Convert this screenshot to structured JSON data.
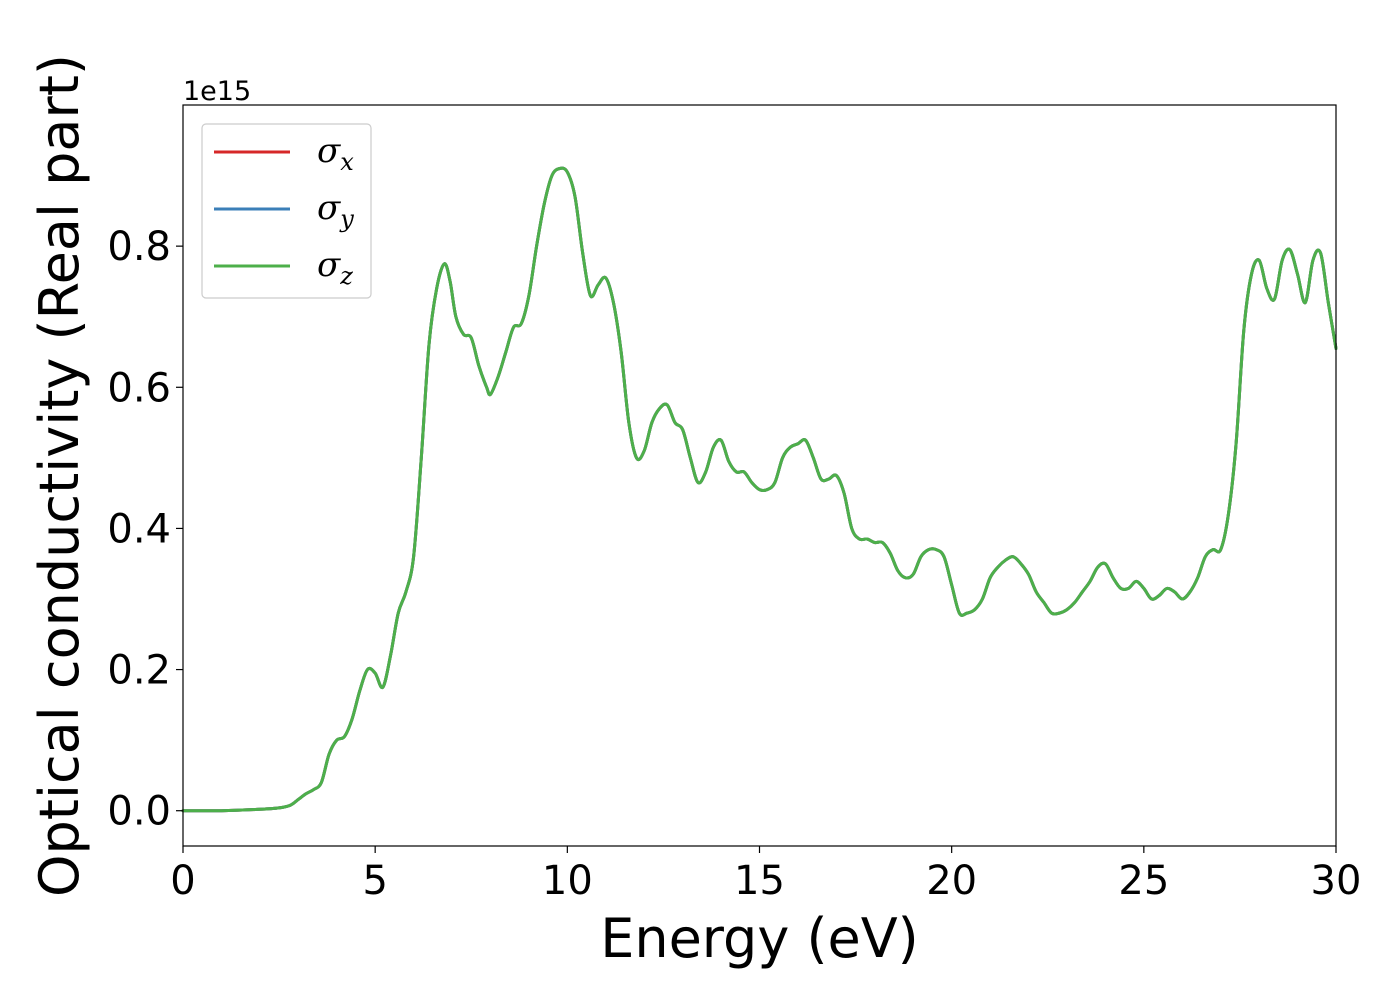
{
  "chart_data": {
    "type": "line",
    "xlabel": "Energy (eV)",
    "ylabel": "Optical conductivity (Real part)",
    "y_offset_text": "1e15",
    "xlim": [
      0,
      30
    ],
    "ylim": [
      -0.05,
      1.0
    ],
    "x_ticks": [
      0,
      5,
      10,
      15,
      20,
      25,
      30
    ],
    "x_tick_labels": [
      "0",
      "5",
      "10",
      "15",
      "20",
      "25",
      "30"
    ],
    "y_ticks": [
      0.0,
      0.2,
      0.4,
      0.6,
      0.8
    ],
    "y_tick_labels": [
      "0.0",
      "0.2",
      "0.4",
      "0.6",
      "0.8"
    ],
    "grid": false,
    "legend_position": "upper-left",
    "legend": [
      {
        "symbol": "σ",
        "subscript": "x",
        "color": "#d62728"
      },
      {
        "symbol": "σ",
        "subscript": "y",
        "color": "#3b7fb8"
      },
      {
        "symbol": "σ",
        "subscript": "z",
        "color": "#4daf4a"
      }
    ],
    "series": [
      {
        "name": "σx",
        "color": "#d62728",
        "ref": "shared"
      },
      {
        "name": "σy",
        "color": "#3b7fb8",
        "ref": "shared"
      },
      {
        "name": "σz",
        "color": "#4daf4a",
        "ref": "shared"
      }
    ],
    "shared": {
      "x": [
        0,
        1,
        2,
        2.5,
        2.8,
        3.0,
        3.2,
        3.4,
        3.6,
        3.8,
        4.0,
        4.2,
        4.4,
        4.6,
        4.8,
        5.0,
        5.2,
        5.4,
        5.6,
        5.8,
        6.0,
        6.2,
        6.4,
        6.6,
        6.8,
        6.95,
        7.1,
        7.3,
        7.5,
        7.7,
        7.9,
        8.0,
        8.2,
        8.4,
        8.6,
        8.8,
        9.0,
        9.2,
        9.4,
        9.6,
        9.8,
        10.0,
        10.2,
        10.4,
        10.6,
        10.8,
        11.0,
        11.2,
        11.4,
        11.6,
        11.8,
        12.0,
        12.2,
        12.4,
        12.6,
        12.8,
        13.0,
        13.2,
        13.4,
        13.6,
        13.8,
        14.0,
        14.2,
        14.4,
        14.6,
        14.8,
        15.0,
        15.2,
        15.4,
        15.6,
        15.8,
        16.0,
        16.2,
        16.4,
        16.6,
        16.8,
        17.0,
        17.2,
        17.4,
        17.6,
        17.8,
        18.0,
        18.2,
        18.4,
        18.6,
        18.8,
        19.0,
        19.2,
        19.4,
        19.6,
        19.8,
        20.0,
        20.2,
        20.4,
        20.6,
        20.8,
        21.0,
        21.2,
        21.4,
        21.6,
        21.8,
        22.0,
        22.2,
        22.4,
        22.6,
        22.8,
        23.0,
        23.2,
        23.4,
        23.6,
        23.8,
        24.0,
        24.2,
        24.4,
        24.6,
        24.8,
        25.0,
        25.2,
        25.4,
        25.6,
        25.8,
        26.0,
        26.2,
        26.4,
        26.6,
        26.8,
        27.0,
        27.2,
        27.4,
        27.6,
        27.8,
        28.0,
        28.2,
        28.4,
        28.6,
        28.8,
        29.0,
        29.2,
        29.4,
        29.6,
        29.8,
        30.0
      ],
      "y": [
        0.0,
        0.0,
        0.002,
        0.004,
        0.008,
        0.016,
        0.024,
        0.03,
        0.04,
        0.08,
        0.1,
        0.105,
        0.13,
        0.17,
        0.2,
        0.195,
        0.175,
        0.22,
        0.28,
        0.31,
        0.36,
        0.5,
        0.66,
        0.74,
        0.775,
        0.75,
        0.7,
        0.675,
        0.67,
        0.63,
        0.6,
        0.59,
        0.615,
        0.65,
        0.685,
        0.69,
        0.73,
        0.8,
        0.86,
        0.9,
        0.91,
        0.905,
        0.87,
        0.79,
        0.73,
        0.745,
        0.755,
        0.72,
        0.65,
        0.55,
        0.5,
        0.51,
        0.55,
        0.57,
        0.575,
        0.55,
        0.54,
        0.5,
        0.465,
        0.48,
        0.515,
        0.525,
        0.495,
        0.48,
        0.48,
        0.465,
        0.455,
        0.455,
        0.465,
        0.5,
        0.515,
        0.52,
        0.525,
        0.5,
        0.47,
        0.47,
        0.475,
        0.45,
        0.4,
        0.385,
        0.385,
        0.38,
        0.38,
        0.365,
        0.34,
        0.33,
        0.335,
        0.36,
        0.37,
        0.37,
        0.36,
        0.32,
        0.28,
        0.28,
        0.285,
        0.3,
        0.33,
        0.345,
        0.355,
        0.36,
        0.35,
        0.335,
        0.31,
        0.295,
        0.28,
        0.28,
        0.285,
        0.295,
        0.31,
        0.325,
        0.345,
        0.35,
        0.33,
        0.315,
        0.315,
        0.325,
        0.315,
        0.3,
        0.305,
        0.315,
        0.31,
        0.3,
        0.31,
        0.33,
        0.36,
        0.37,
        0.37,
        0.42,
        0.52,
        0.68,
        0.76,
        0.78,
        0.74,
        0.725,
        0.78,
        0.795,
        0.76,
        0.72,
        0.78,
        0.79,
        0.72,
        0.655
      ]
    }
  }
}
